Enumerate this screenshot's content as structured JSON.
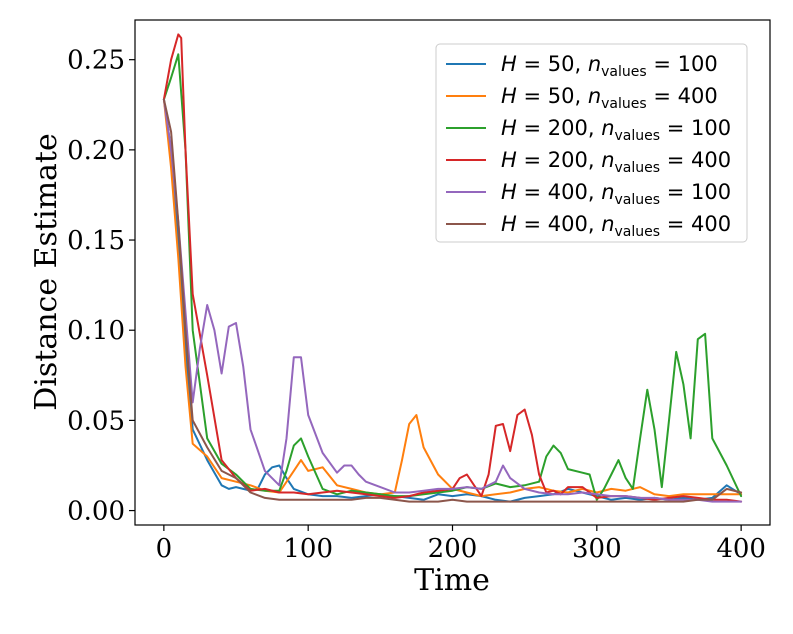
{
  "chart_data": {
    "type": "line",
    "title": "",
    "xlabel": "Time",
    "ylabel": "Distance Estimate",
    "xlim": [
      -20,
      420
    ],
    "ylim": [
      -0.008,
      0.272
    ],
    "xticks": [
      0,
      100,
      200,
      300,
      400
    ],
    "yticks": [
      0.0,
      0.05,
      0.1,
      0.15,
      0.2,
      0.25
    ],
    "xtick_labels": [
      "0",
      "100",
      "200",
      "300",
      "400"
    ],
    "ytick_labels": [
      "0.00",
      "0.05",
      "0.10",
      "0.15",
      "0.20",
      "0.25"
    ],
    "legend_position": "top-right",
    "series": [
      {
        "name": "H = 50, n_values = 100",
        "legend": {
          "pre": "H",
          "mid": " = 50, ",
          "n": "n",
          "sub": "values",
          "post": " = 100"
        },
        "color": "#1f77b4",
        "x": [
          0,
          5,
          10,
          15,
          20,
          30,
          40,
          45,
          50,
          55,
          60,
          65,
          70,
          75,
          80,
          85,
          90,
          100,
          110,
          120,
          130,
          140,
          150,
          160,
          170,
          180,
          190,
          200,
          210,
          220,
          230,
          240,
          250,
          260,
          270,
          280,
          290,
          300,
          310,
          320,
          330,
          340,
          350,
          360,
          370,
          380,
          390,
          400
        ],
        "y": [
          0.228,
          0.2,
          0.15,
          0.09,
          0.045,
          0.028,
          0.014,
          0.012,
          0.013,
          0.012,
          0.011,
          0.012,
          0.02,
          0.024,
          0.025,
          0.018,
          0.012,
          0.009,
          0.008,
          0.008,
          0.007,
          0.008,
          0.009,
          0.008,
          0.007,
          0.006,
          0.009,
          0.008,
          0.009,
          0.008,
          0.006,
          0.005,
          0.007,
          0.008,
          0.009,
          0.012,
          0.01,
          0.008,
          0.006,
          0.007,
          0.006,
          0.007,
          0.006,
          0.007,
          0.006,
          0.007,
          0.014,
          0.009
        ]
      },
      {
        "name": "H = 50, n_values = 400",
        "legend": {
          "pre": "H",
          "mid": " = 50, ",
          "n": "n",
          "sub": "values",
          "post": " = 400"
        },
        "color": "#ff7f0e",
        "x": [
          0,
          5,
          10,
          15,
          20,
          30,
          40,
          50,
          60,
          70,
          80,
          90,
          95,
          100,
          110,
          120,
          130,
          140,
          150,
          160,
          165,
          170,
          175,
          180,
          190,
          200,
          210,
          220,
          230,
          240,
          250,
          260,
          270,
          280,
          290,
          300,
          310,
          320,
          330,
          340,
          350,
          360,
          370,
          380,
          390,
          400
        ],
        "y": [
          0.228,
          0.19,
          0.14,
          0.08,
          0.037,
          0.03,
          0.018,
          0.016,
          0.014,
          0.011,
          0.01,
          0.022,
          0.028,
          0.022,
          0.024,
          0.014,
          0.012,
          0.01,
          0.009,
          0.01,
          0.028,
          0.048,
          0.053,
          0.035,
          0.02,
          0.012,
          0.01,
          0.008,
          0.009,
          0.01,
          0.012,
          0.013,
          0.011,
          0.01,
          0.012,
          0.01,
          0.012,
          0.011,
          0.013,
          0.009,
          0.008,
          0.009,
          0.009,
          0.009,
          0.009,
          0.009
        ]
      },
      {
        "name": "H = 200, n_values = 100",
        "legend": {
          "pre": "H",
          "mid": " = 200, ",
          "n": "n",
          "sub": "values",
          "post": " = 100"
        },
        "color": "#2ca02c",
        "x": [
          0,
          5,
          10,
          15,
          20,
          30,
          40,
          50,
          60,
          70,
          80,
          85,
          90,
          95,
          100,
          110,
          120,
          130,
          140,
          150,
          160,
          170,
          180,
          190,
          200,
          210,
          220,
          230,
          240,
          250,
          260,
          265,
          270,
          275,
          280,
          290,
          295,
          300,
          305,
          310,
          315,
          320,
          325,
          330,
          335,
          340,
          345,
          350,
          355,
          360,
          365,
          370,
          375,
          380,
          390,
          400
        ],
        "y": [
          0.228,
          0.24,
          0.253,
          0.2,
          0.1,
          0.04,
          0.026,
          0.02,
          0.012,
          0.011,
          0.011,
          0.022,
          0.036,
          0.04,
          0.03,
          0.012,
          0.009,
          0.011,
          0.01,
          0.009,
          0.008,
          0.008,
          0.009,
          0.01,
          0.011,
          0.013,
          0.012,
          0.015,
          0.013,
          0.014,
          0.016,
          0.03,
          0.036,
          0.032,
          0.023,
          0.021,
          0.02,
          0.006,
          0.012,
          0.02,
          0.028,
          0.018,
          0.012,
          0.04,
          0.067,
          0.045,
          0.013,
          0.05,
          0.088,
          0.07,
          0.04,
          0.095,
          0.098,
          0.04,
          0.025,
          0.008
        ]
      },
      {
        "name": "H = 200, n_values = 400",
        "legend": {
          "pre": "H",
          "mid": " = 200, ",
          "n": "n",
          "sub": "values",
          "post": " = 400"
        },
        "color": "#d62728",
        "x": [
          0,
          5,
          10,
          12,
          15,
          20,
          30,
          40,
          50,
          60,
          70,
          80,
          90,
          100,
          110,
          120,
          130,
          140,
          150,
          160,
          170,
          180,
          190,
          200,
          205,
          210,
          215,
          220,
          225,
          230,
          235,
          240,
          245,
          250,
          255,
          260,
          265,
          270,
          275,
          280,
          290,
          300,
          310,
          320,
          330,
          340,
          350,
          360,
          370,
          380,
          390,
          400
        ],
        "y": [
          0.228,
          0.25,
          0.264,
          0.262,
          0.2,
          0.12,
          0.075,
          0.028,
          0.018,
          0.011,
          0.012,
          0.01,
          0.01,
          0.009,
          0.01,
          0.011,
          0.01,
          0.009,
          0.008,
          0.007,
          0.008,
          0.01,
          0.011,
          0.012,
          0.018,
          0.02,
          0.014,
          0.008,
          0.02,
          0.047,
          0.048,
          0.033,
          0.053,
          0.056,
          0.042,
          0.02,
          0.01,
          0.011,
          0.009,
          0.013,
          0.013,
          0.007,
          0.008,
          0.008,
          0.007,
          0.006,
          0.007,
          0.008,
          0.007,
          0.006,
          0.006,
          0.005
        ]
      },
      {
        "name": "H = 400, n_values = 100",
        "legend": {
          "pre": "H",
          "mid": " = 400, ",
          "n": "n",
          "sub": "values",
          "post": " = 100"
        },
        "color": "#9467bd",
        "x": [
          0,
          5,
          10,
          15,
          20,
          25,
          30,
          35,
          40,
          45,
          50,
          55,
          60,
          70,
          80,
          85,
          90,
          95,
          100,
          110,
          120,
          125,
          130,
          135,
          140,
          150,
          160,
          170,
          180,
          190,
          200,
          210,
          220,
          230,
          235,
          240,
          250,
          260,
          270,
          280,
          290,
          300,
          310,
          320,
          330,
          340,
          350,
          360,
          370,
          380,
          390,
          400
        ],
        "y": [
          0.228,
          0.2,
          0.16,
          0.11,
          0.06,
          0.09,
          0.114,
          0.1,
          0.076,
          0.102,
          0.104,
          0.08,
          0.045,
          0.022,
          0.014,
          0.04,
          0.085,
          0.085,
          0.053,
          0.032,
          0.021,
          0.025,
          0.025,
          0.02,
          0.016,
          0.013,
          0.01,
          0.01,
          0.011,
          0.012,
          0.012,
          0.013,
          0.012,
          0.016,
          0.025,
          0.018,
          0.012,
          0.01,
          0.009,
          0.009,
          0.01,
          0.009,
          0.008,
          0.008,
          0.007,
          0.007,
          0.006,
          0.006,
          0.006,
          0.005,
          0.005,
          0.005
        ]
      },
      {
        "name": "H = 400, n_values = 400",
        "legend": {
          "pre": "H",
          "mid": " = 400, ",
          "n": "n",
          "sub": "values",
          "post": " = 400"
        },
        "color": "#8c564b",
        "x": [
          0,
          5,
          10,
          15,
          20,
          30,
          40,
          50,
          60,
          70,
          80,
          90,
          100,
          110,
          120,
          130,
          140,
          150,
          160,
          170,
          180,
          190,
          200,
          210,
          220,
          230,
          240,
          250,
          260,
          270,
          280,
          290,
          300,
          310,
          320,
          330,
          340,
          350,
          360,
          370,
          380,
          390,
          400
        ],
        "y": [
          0.228,
          0.21,
          0.16,
          0.1,
          0.05,
          0.035,
          0.022,
          0.018,
          0.01,
          0.007,
          0.006,
          0.006,
          0.006,
          0.006,
          0.006,
          0.006,
          0.007,
          0.007,
          0.006,
          0.005,
          0.005,
          0.005,
          0.006,
          0.005,
          0.005,
          0.005,
          0.005,
          0.005,
          0.005,
          0.005,
          0.005,
          0.005,
          0.005,
          0.005,
          0.005,
          0.005,
          0.005,
          0.005,
          0.005,
          0.006,
          0.006,
          0.012,
          0.01
        ]
      }
    ]
  }
}
